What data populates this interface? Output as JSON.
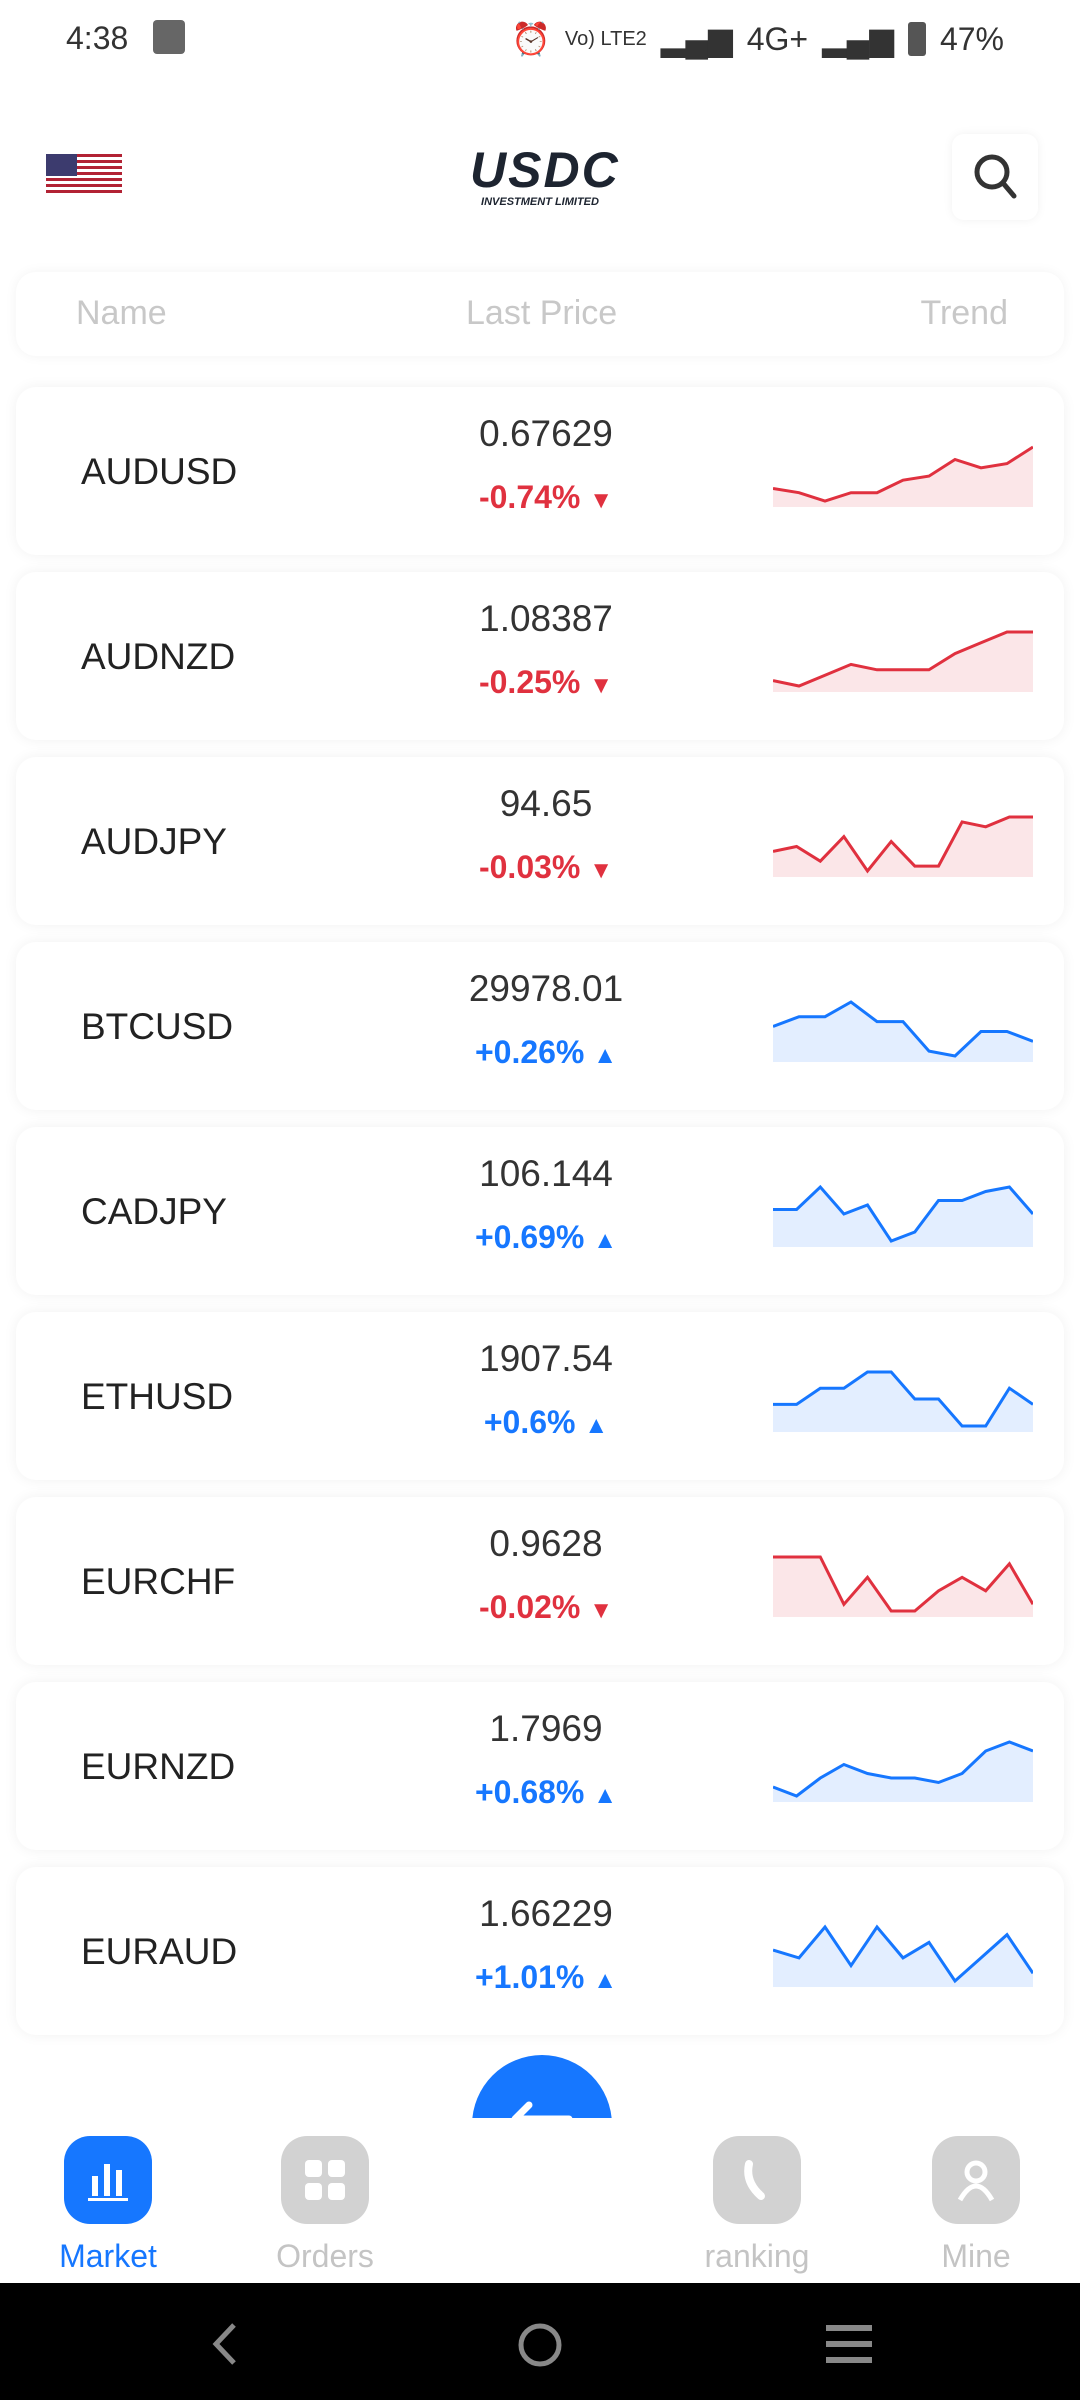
{
  "status_bar": {
    "time": "4:38",
    "network1": "Vo) LTE2",
    "network2": "4G+",
    "battery": "47%"
  },
  "header": {
    "logo_main": "USDC",
    "logo_sub": "INVESTMENT LIMITED",
    "flag": "us-flag-icon",
    "search_icon": "search-icon"
  },
  "columns": {
    "name": "Name",
    "price": "Last Price",
    "trend": "Trend"
  },
  "colors": {
    "up": "#1677ff",
    "down": "#e0313f",
    "accent": "#1677ff"
  },
  "rows": [
    {
      "name": "AUDUSD",
      "price": "0.67629",
      "change": "-0.74%",
      "dir": "down",
      "trend": [
        4,
        3,
        1,
        3,
        3,
        6,
        7,
        11,
        9,
        10,
        14
      ]
    },
    {
      "name": "AUDNZD",
      "price": "1.08387",
      "change": "-0.25%",
      "dir": "down",
      "trend": [
        4,
        3,
        5,
        7,
        6,
        6,
        6,
        9,
        11,
        13,
        13
      ]
    },
    {
      "name": "AUDJPY",
      "price": "94.65",
      "change": "-0.03%",
      "dir": "down",
      "trend": [
        6,
        7,
        4,
        9,
        2,
        8,
        3,
        3,
        12,
        11,
        13,
        13
      ]
    },
    {
      "name": "BTCUSD",
      "price": "29978.01",
      "change": "+0.26%",
      "dir": "up",
      "trend": [
        8,
        10,
        10,
        13,
        9,
        9,
        3,
        2,
        7,
        7,
        5
      ]
    },
    {
      "name": "CADJPY",
      "price": "106.144",
      "change": "+0.69%",
      "dir": "up",
      "trend": [
        8,
        8,
        13,
        7,
        9,
        1,
        3,
        10,
        10,
        12,
        13,
        7
      ]
    },
    {
      "name": "ETHUSD",
      "price": "1907.54",
      "change": "+0.6%",
      "dir": "up",
      "trend": [
        6,
        6,
        9,
        9,
        12,
        12,
        7,
        7,
        2,
        2,
        9,
        6
      ]
    },
    {
      "name": "EURCHF",
      "price": "0.9628",
      "change": "-0.02%",
      "dir": "down",
      "trend": [
        12,
        12,
        12,
        5,
        9,
        4,
        4,
        7,
        9,
        7,
        11,
        5
      ]
    },
    {
      "name": "EURNZD",
      "price": "1.7969",
      "change": "+0.68%",
      "dir": "up",
      "trend": [
        4,
        2,
        6,
        9,
        7,
        6,
        6,
        5,
        7,
        12,
        14,
        12
      ]
    },
    {
      "name": "EURAUD",
      "price": "1.66229",
      "change": "+1.01%",
      "dir": "up",
      "trend": [
        6,
        5,
        9,
        4,
        9,
        5,
        7,
        2,
        5,
        8,
        3
      ]
    }
  ],
  "fab_icon": "swap-icon",
  "tabs": [
    {
      "label": "Market",
      "icon": "bar-chart-icon",
      "active": true
    },
    {
      "label": "Orders",
      "icon": "grid-icon"
    },
    {
      "label": "ranking",
      "icon": "phone-icon"
    },
    {
      "label": "Mine",
      "icon": "user-icon"
    }
  ]
}
